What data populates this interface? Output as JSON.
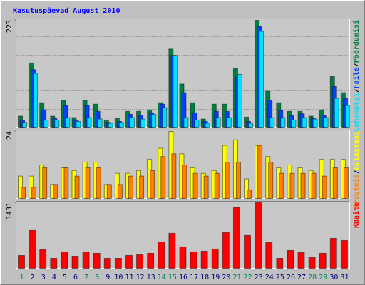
{
  "chart_data": {
    "type": "bar",
    "title": "Kasutuspäevad August 2010",
    "categories": [
      "1",
      "2",
      "3",
      "4",
      "5",
      "6",
      "7",
      "8",
      "9",
      "10",
      "11",
      "12",
      "13",
      "14",
      "15",
      "16",
      "17",
      "18",
      "19",
      "20",
      "21",
      "22",
      "23",
      "24",
      "25",
      "26",
      "27",
      "28",
      "29",
      "30",
      "31"
    ],
    "label_colors": [
      "#008060",
      "#000080",
      "#000080",
      "#000080",
      "#000080",
      "#000080",
      "#008060",
      "#008060",
      "#000080",
      "#000080",
      "#000080",
      "#000080",
      "#000080",
      "#008060",
      "#008060",
      "#000080",
      "#000080",
      "#000080",
      "#000080",
      "#000080",
      "#008060",
      "#008060",
      "#000080",
      "#000080",
      "#000080",
      "#000080",
      "#000080",
      "#008060",
      "#008060",
      "#000080",
      "#000080"
    ],
    "legend_separator": "/",
    "panels": [
      {
        "ylim": [
          0,
          223
        ],
        "yticks": [
          223
        ],
        "grid": true,
        "series": [
          {
            "name": "Pöördumisi",
            "color": "#008040",
            "values": [
              23,
              134,
              51,
              23,
              56,
              20,
              56,
              48,
              15,
              18,
              33,
              33,
              36,
              51,
              163,
              90,
              51,
              17,
              48,
              48,
              122,
              21,
              223,
              75,
              51,
              33,
              33,
              23,
              36,
              106,
              72
            ]
          },
          {
            "name": "Faile",
            "color": "#0040ff",
            "values": [
              15,
              120,
              36,
              18,
              45,
              15,
              45,
              33,
              10,
              12,
              27,
              25,
              30,
              48,
              150,
              72,
              30,
              12,
              33,
              33,
              105,
              12,
              210,
              56,
              35,
              24,
              28,
              18,
              25,
              85,
              60
            ]
          },
          {
            "name": "Lehekülgi",
            "color": "#00e0ff",
            "values": [
              10,
              112,
              15,
              15,
              20,
              12,
              20,
              17,
              8,
              10,
              20,
              17,
              27,
              41,
              150,
              20,
              15,
              8,
              20,
              20,
              110,
              8,
              200,
              20,
              20,
              15,
              20,
              17,
              20,
              60,
              45
            ]
          }
        ]
      },
      {
        "ylim": [
          0,
          24
        ],
        "yticks": [
          24
        ],
        "grid": false,
        "series": [
          {
            "name": "Külastusi",
            "color": "#ffff00",
            "values": [
              8,
              8,
              12,
              5,
              11,
              10,
              13,
              13,
              5,
              9,
              9,
              10,
              14,
              18,
              24,
              16,
              11,
              9,
              10,
              19,
              21,
              7,
              19,
              15,
              11,
              12,
              11,
              10,
              14,
              14,
              14
            ]
          },
          {
            "name": "Arvuteid",
            "color": "#ff8000",
            "values": [
              4,
              4,
              11,
              5,
              11,
              8,
              11,
              11,
              5,
              5,
              8,
              8,
              10,
              15,
              16,
              12,
              9,
              8,
              9,
              13,
              13,
              3,
              19,
              13,
              9,
              9,
              9,
              9,
              8,
              11,
              11
            ]
          }
        ]
      },
      {
        "ylim": [
          0,
          1431
        ],
        "yticks": [
          1431
        ],
        "grid": false,
        "series": [
          {
            "name": "KBaite",
            "color": "#ff0000",
            "values": [
              280,
              827,
              406,
              218,
              359,
              265,
              359,
              328,
              218,
              218,
              281,
              296,
              328,
              577,
              765,
              468,
              359,
              374,
              421,
              780,
              1326,
              718,
              1431,
              562,
              218,
              390,
              343,
              234,
              328,
              655,
              608
            ]
          }
        ]
      }
    ]
  }
}
